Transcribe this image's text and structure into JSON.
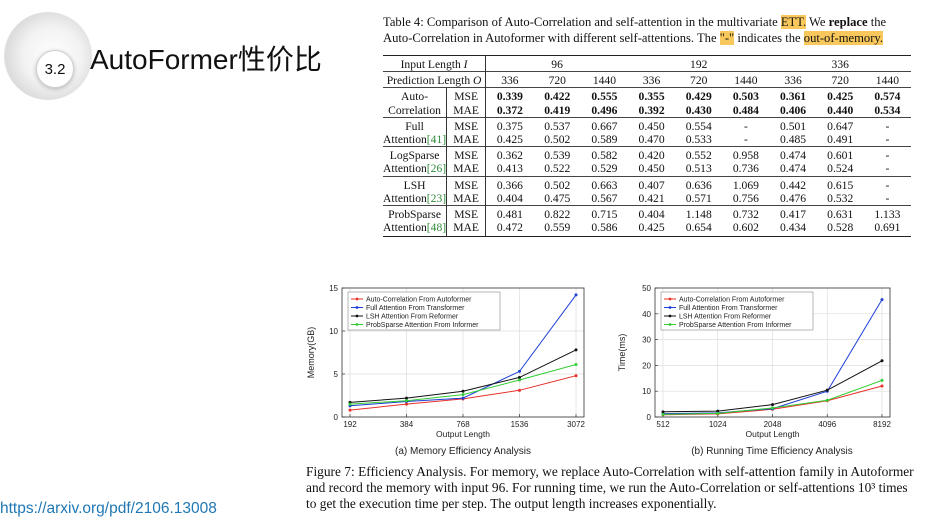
{
  "slide": {
    "number": "3.2",
    "title": "AutoFormer性价比",
    "link": "https://arxiv.org/pdf/2106.13008"
  },
  "table": {
    "caption_parts": [
      {
        "t": "Table 4: Comparison of Auto-Correlation and self-attention in the multivariate "
      },
      {
        "t": "ETT.",
        "hl": true
      },
      {
        "t": " We "
      },
      {
        "t": "replace",
        "b": true
      },
      {
        "t": " the Auto-Correlation in Autoformer with different self-attentions. The "
      },
      {
        "t": "\"-\"",
        "hl": true
      },
      {
        "t": " indicates the "
      },
      {
        "t": "out-of-memory.",
        "hl": true
      }
    ],
    "input_label": "Input Length",
    "input_symbol": "I",
    "input_lengths": [
      "96",
      "192",
      "336"
    ],
    "prediction_label": "Prediction Length",
    "prediction_symbol": "O",
    "prediction_lengths": [
      "336",
      "720",
      "1440",
      "336",
      "720",
      "1440",
      "336",
      "720",
      "1440"
    ],
    "groups": [
      {
        "name": [
          "Auto-",
          "Correlation"
        ],
        "ref": "",
        "bold": true,
        "rows": [
          {
            "metric": "MSE",
            "values": [
              "0.339",
              "0.422",
              "0.555",
              "0.355",
              "0.429",
              "0.503",
              "0.361",
              "0.425",
              "0.574"
            ]
          },
          {
            "metric": "MAE",
            "values": [
              "0.372",
              "0.419",
              "0.496",
              "0.392",
              "0.430",
              "0.484",
              "0.406",
              "0.440",
              "0.534"
            ]
          }
        ]
      },
      {
        "name": [
          "Full",
          "Attention"
        ],
        "ref": "[41]",
        "bold": false,
        "rows": [
          {
            "metric": "MSE",
            "values": [
              "0.375",
              "0.537",
              "0.667",
              "0.450",
              "0.554",
              "-",
              "0.501",
              "0.647",
              "-"
            ]
          },
          {
            "metric": "MAE",
            "values": [
              "0.425",
              "0.502",
              "0.589",
              "0.470",
              "0.533",
              "-",
              "0.485",
              "0.491",
              "-"
            ]
          }
        ]
      },
      {
        "name": [
          "LogSparse",
          "Attention"
        ],
        "ref": "[26]",
        "bold": false,
        "rows": [
          {
            "metric": "MSE",
            "values": [
              "0.362",
              "0.539",
              "0.582",
              "0.420",
              "0.552",
              "0.958",
              "0.474",
              "0.601",
              "-"
            ]
          },
          {
            "metric": "MAE",
            "values": [
              "0.413",
              "0.522",
              "0.529",
              "0.450",
              "0.513",
              "0.736",
              "0.474",
              "0.524",
              "-"
            ]
          }
        ]
      },
      {
        "name": [
          "LSH",
          "Attention"
        ],
        "ref": "[23]",
        "bold": false,
        "rows": [
          {
            "metric": "MSE",
            "values": [
              "0.366",
              "0.502",
              "0.663",
              "0.407",
              "0.636",
              "1.069",
              "0.442",
              "0.615",
              "-"
            ]
          },
          {
            "metric": "MAE",
            "values": [
              "0.404",
              "0.475",
              "0.567",
              "0.421",
              "0.571",
              "0.756",
              "0.476",
              "0.532",
              "-"
            ]
          }
        ]
      },
      {
        "name": [
          "ProbSparse",
          "Attention"
        ],
        "ref": "[48]",
        "bold": false,
        "rows": [
          {
            "metric": "MSE",
            "values": [
              "0.481",
              "0.822",
              "0.715",
              "0.404",
              "1.148",
              "0.732",
              "0.417",
              "0.631",
              "1.133"
            ]
          },
          {
            "metric": "MAE",
            "values": [
              "0.472",
              "0.559",
              "0.586",
              "0.425",
              "0.654",
              "0.602",
              "0.434",
              "0.528",
              "0.691"
            ]
          }
        ]
      }
    ]
  },
  "figure": {
    "caption": "Figure 7: Efficiency Analysis. For memory, we replace Auto-Correlation with self-attention family in Autoformer and record the memory with input 96. For running time, we run the Auto-Correlation or self-attentions 10³ times to get the execution time per step. The output length increases exponentially."
  },
  "colors": {
    "auto": "#e8302a",
    "full": "#1d3fd6",
    "lsh": "#111111",
    "prob": "#33cc33",
    "highlight": "#f8c85c",
    "link": "#1f77b4",
    "ref": "#2e8b3a"
  },
  "chart_data": [
    {
      "type": "line",
      "title": "(a) Memory Efficiency Analysis",
      "xlabel": "Output Length",
      "ylabel": "Memory(GB)",
      "categories": [
        "192",
        "384",
        "768",
        "1536",
        "3072"
      ],
      "ylim": [
        0,
        15
      ],
      "yticks": [
        0,
        5,
        10,
        15
      ],
      "legend_position": "top-left",
      "series": [
        {
          "name": "Auto-Correlation From Autoformer",
          "color": "#e8302a",
          "values": [
            0.8,
            1.5,
            2.1,
            3.1,
            4.8
          ]
        },
        {
          "name": "Full Attention From Transformer",
          "color": "#1d3fd6",
          "values": [
            1.3,
            1.8,
            2.2,
            5.3,
            14.2
          ]
        },
        {
          "name": "LSH Attention From Reformer",
          "color": "#111111",
          "values": [
            1.7,
            2.2,
            3.0,
            4.6,
            7.8
          ]
        },
        {
          "name": "ProbSparse Attention From Informer",
          "color": "#33cc33",
          "values": [
            1.5,
            1.9,
            2.6,
            4.3,
            6.1
          ]
        }
      ]
    },
    {
      "type": "line",
      "title": "(b) Running Time Efficiency Analysis",
      "xlabel": "Output Length",
      "ylabel": "Time(ms)",
      "categories": [
        "512",
        "1024",
        "2048",
        "4096",
        "8192"
      ],
      "ylim": [
        0,
        50
      ],
      "yticks": [
        0,
        10,
        20,
        30,
        40,
        50
      ],
      "legend_position": "top-left",
      "series": [
        {
          "name": "Auto-Correlation From Autoformer",
          "color": "#e8302a",
          "values": [
            0.9,
            1.2,
            3.0,
            6.3,
            12.0
          ]
        },
        {
          "name": "Full Attention From Transformer",
          "color": "#1d3fd6",
          "values": [
            1.3,
            1.6,
            3.2,
            10.0,
            45.5
          ]
        },
        {
          "name": "LSH Attention From Reformer",
          "color": "#111111",
          "values": [
            2.0,
            2.3,
            4.8,
            10.4,
            21.8
          ]
        },
        {
          "name": "ProbSparse Attention From Informer",
          "color": "#33cc33",
          "values": [
            1.0,
            1.4,
            3.5,
            6.5,
            14.2
          ]
        }
      ]
    }
  ]
}
